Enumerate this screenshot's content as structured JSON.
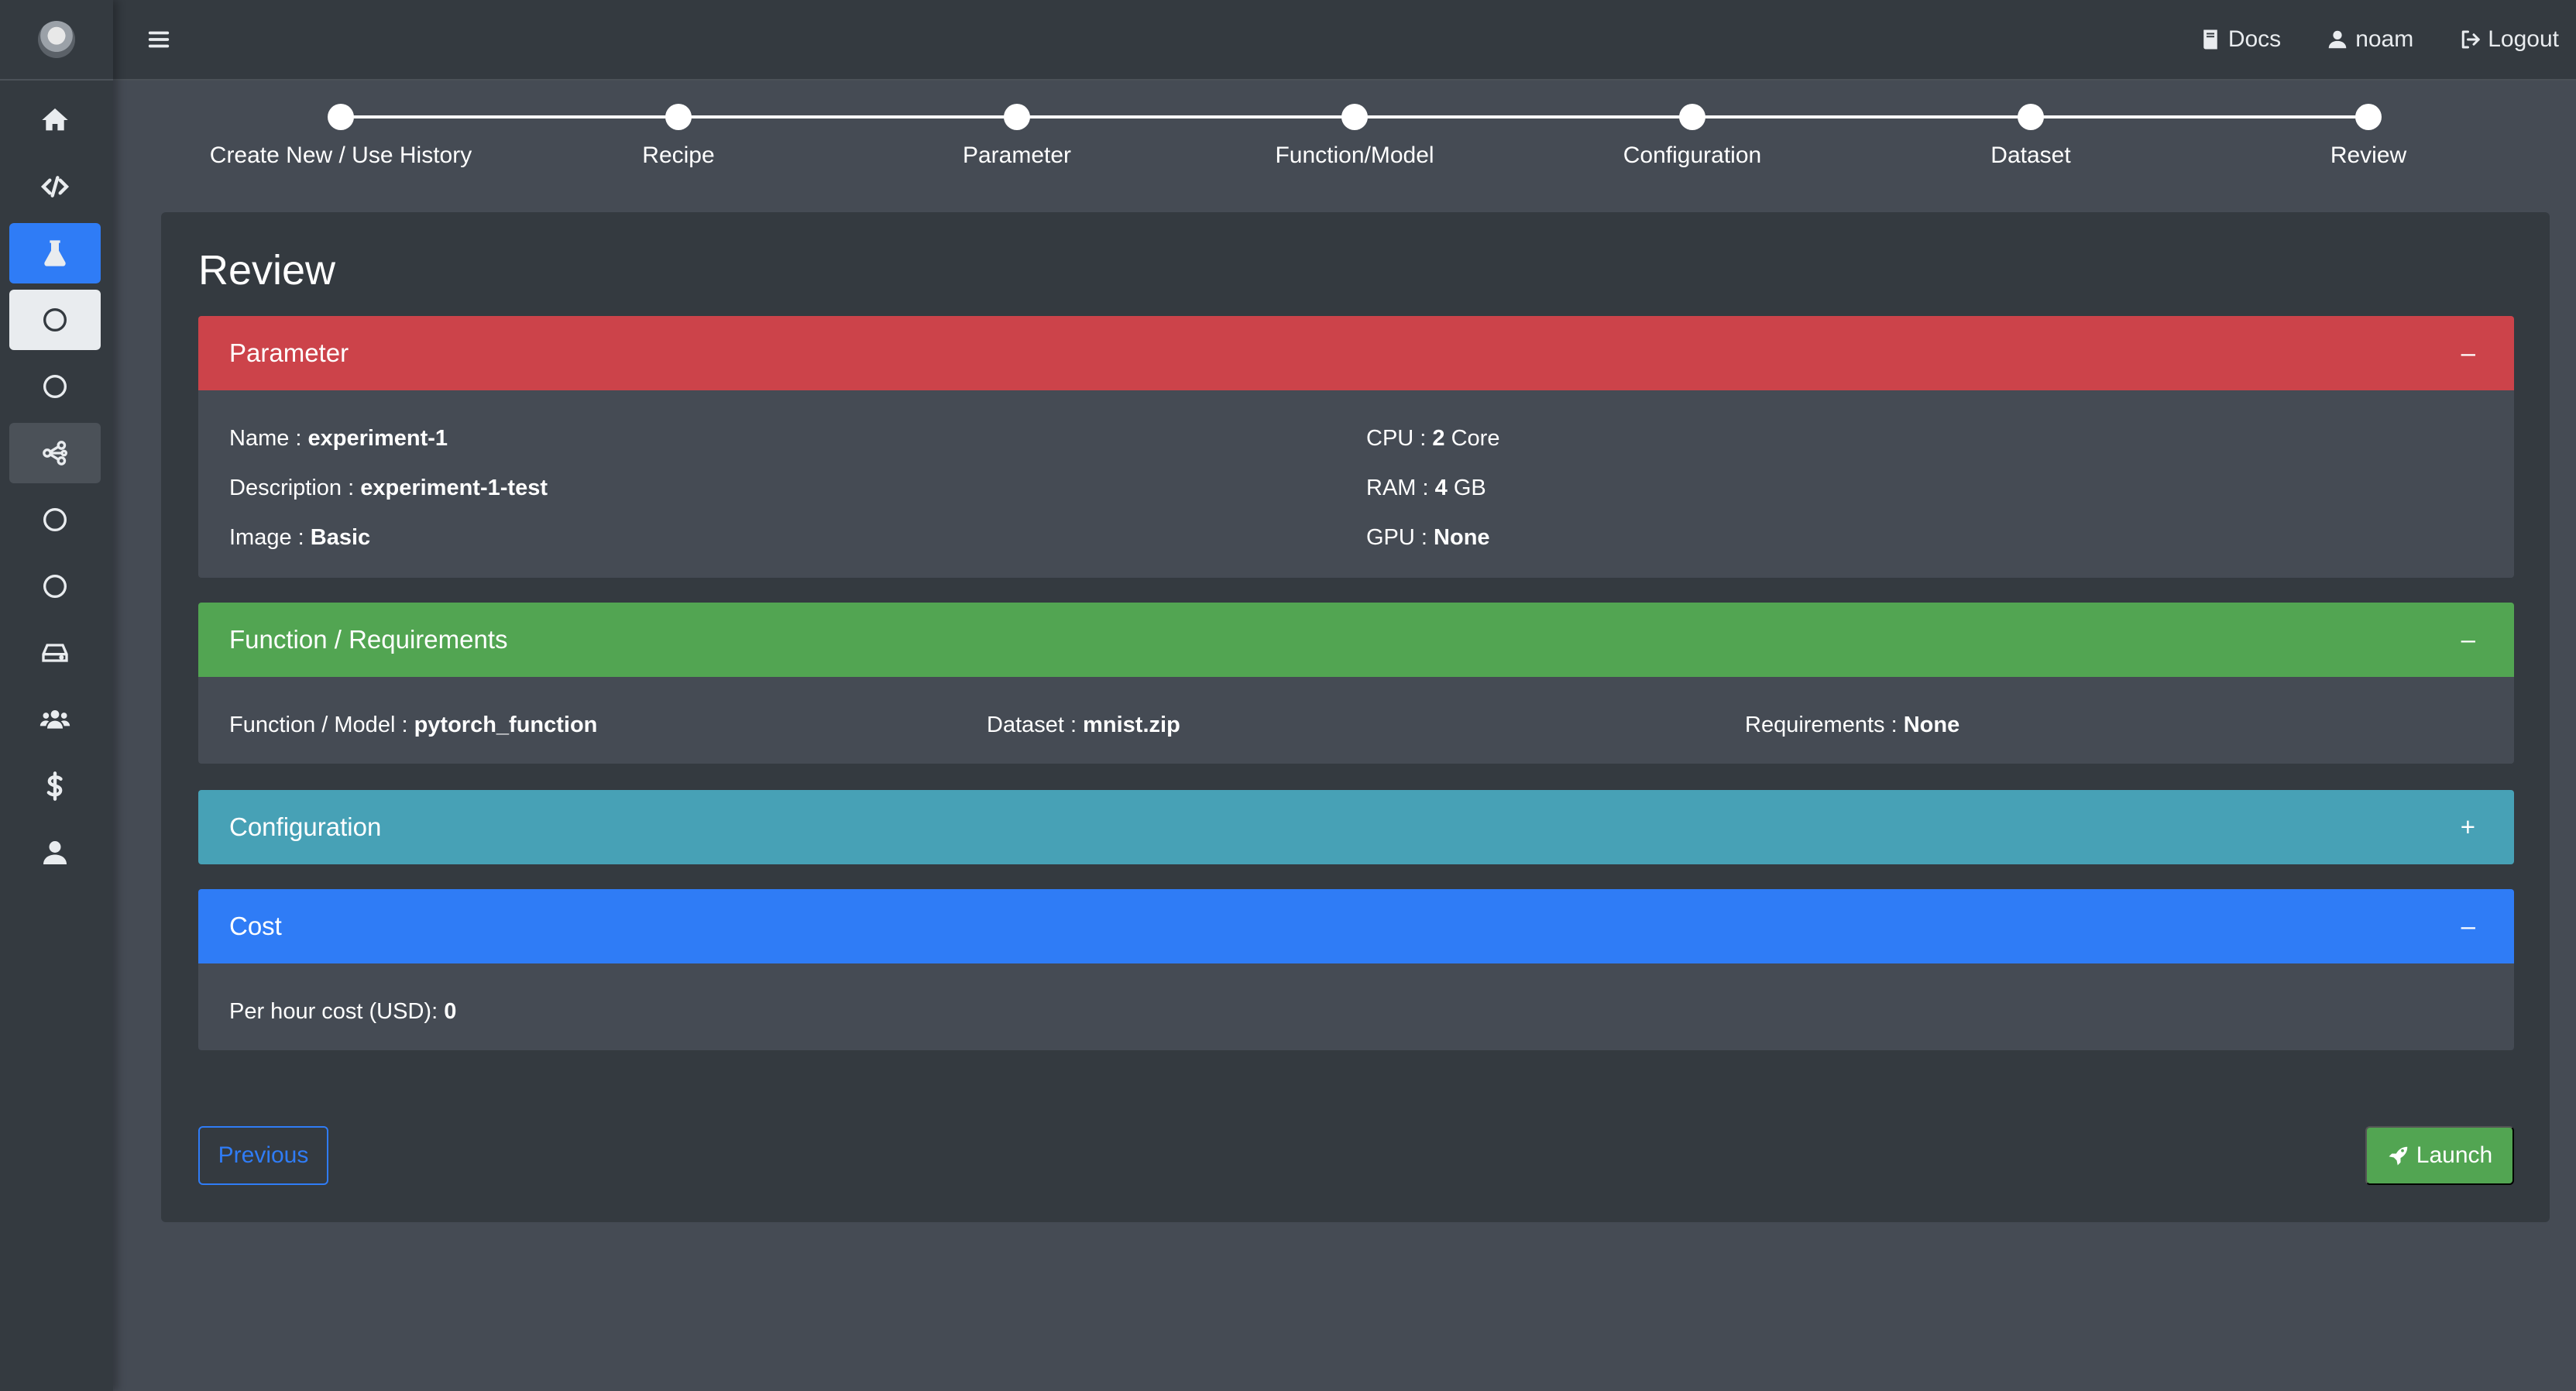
{
  "topbar": {
    "docs_label": "Docs",
    "user_label": "noam",
    "logout_label": "Logout"
  },
  "sidebar": {
    "items": [
      {
        "icon": "home-icon"
      },
      {
        "icon": "code-icon"
      },
      {
        "icon": "flask-icon"
      },
      {
        "icon": "circle-icon"
      },
      {
        "icon": "circle-icon"
      },
      {
        "icon": "share-nodes-icon"
      },
      {
        "icon": "circle-icon"
      },
      {
        "icon": "circle-icon"
      },
      {
        "icon": "hard-drive-icon"
      },
      {
        "icon": "users-icon"
      },
      {
        "icon": "dollar-icon"
      },
      {
        "icon": "user-icon"
      }
    ]
  },
  "stepper": {
    "steps": [
      "Create New / Use History",
      "Recipe",
      "Parameter",
      "Function/Model",
      "Configuration",
      "Dataset",
      "Review"
    ]
  },
  "review": {
    "title": "Review",
    "parameter": {
      "header": "Parameter",
      "toggle": "–",
      "name_label": "Name :",
      "name_value": "experiment-1",
      "description_label": "Description :",
      "description_value": "experiment-1-test",
      "image_label": "Image :",
      "image_value": "Basic",
      "cpu_label": "CPU :",
      "cpu_value": "2",
      "cpu_unit": "Core",
      "ram_label": "RAM :",
      "ram_value": "4",
      "ram_unit": "GB",
      "gpu_label": "GPU :",
      "gpu_value": "None"
    },
    "function": {
      "header": "Function / Requirements",
      "toggle": "–",
      "function_label": "Function / Model :",
      "function_value": "pytorch_function",
      "dataset_label": "Dataset :",
      "dataset_value": "mnist.zip",
      "requirements_label": "Requirements :",
      "requirements_value": "None"
    },
    "configuration": {
      "header": "Configuration",
      "toggle": "+"
    },
    "cost": {
      "header": "Cost",
      "toggle": "–",
      "per_hour_label": "Per hour cost (USD):",
      "per_hour_value": "0"
    }
  },
  "actions": {
    "previous_label": "Previous",
    "launch_label": "Launch"
  },
  "colors": {
    "parameter": "#cc434a",
    "function": "#52a552",
    "configuration": "#47a1b6",
    "cost": "#2f7cf6",
    "launch": "#52a552"
  }
}
